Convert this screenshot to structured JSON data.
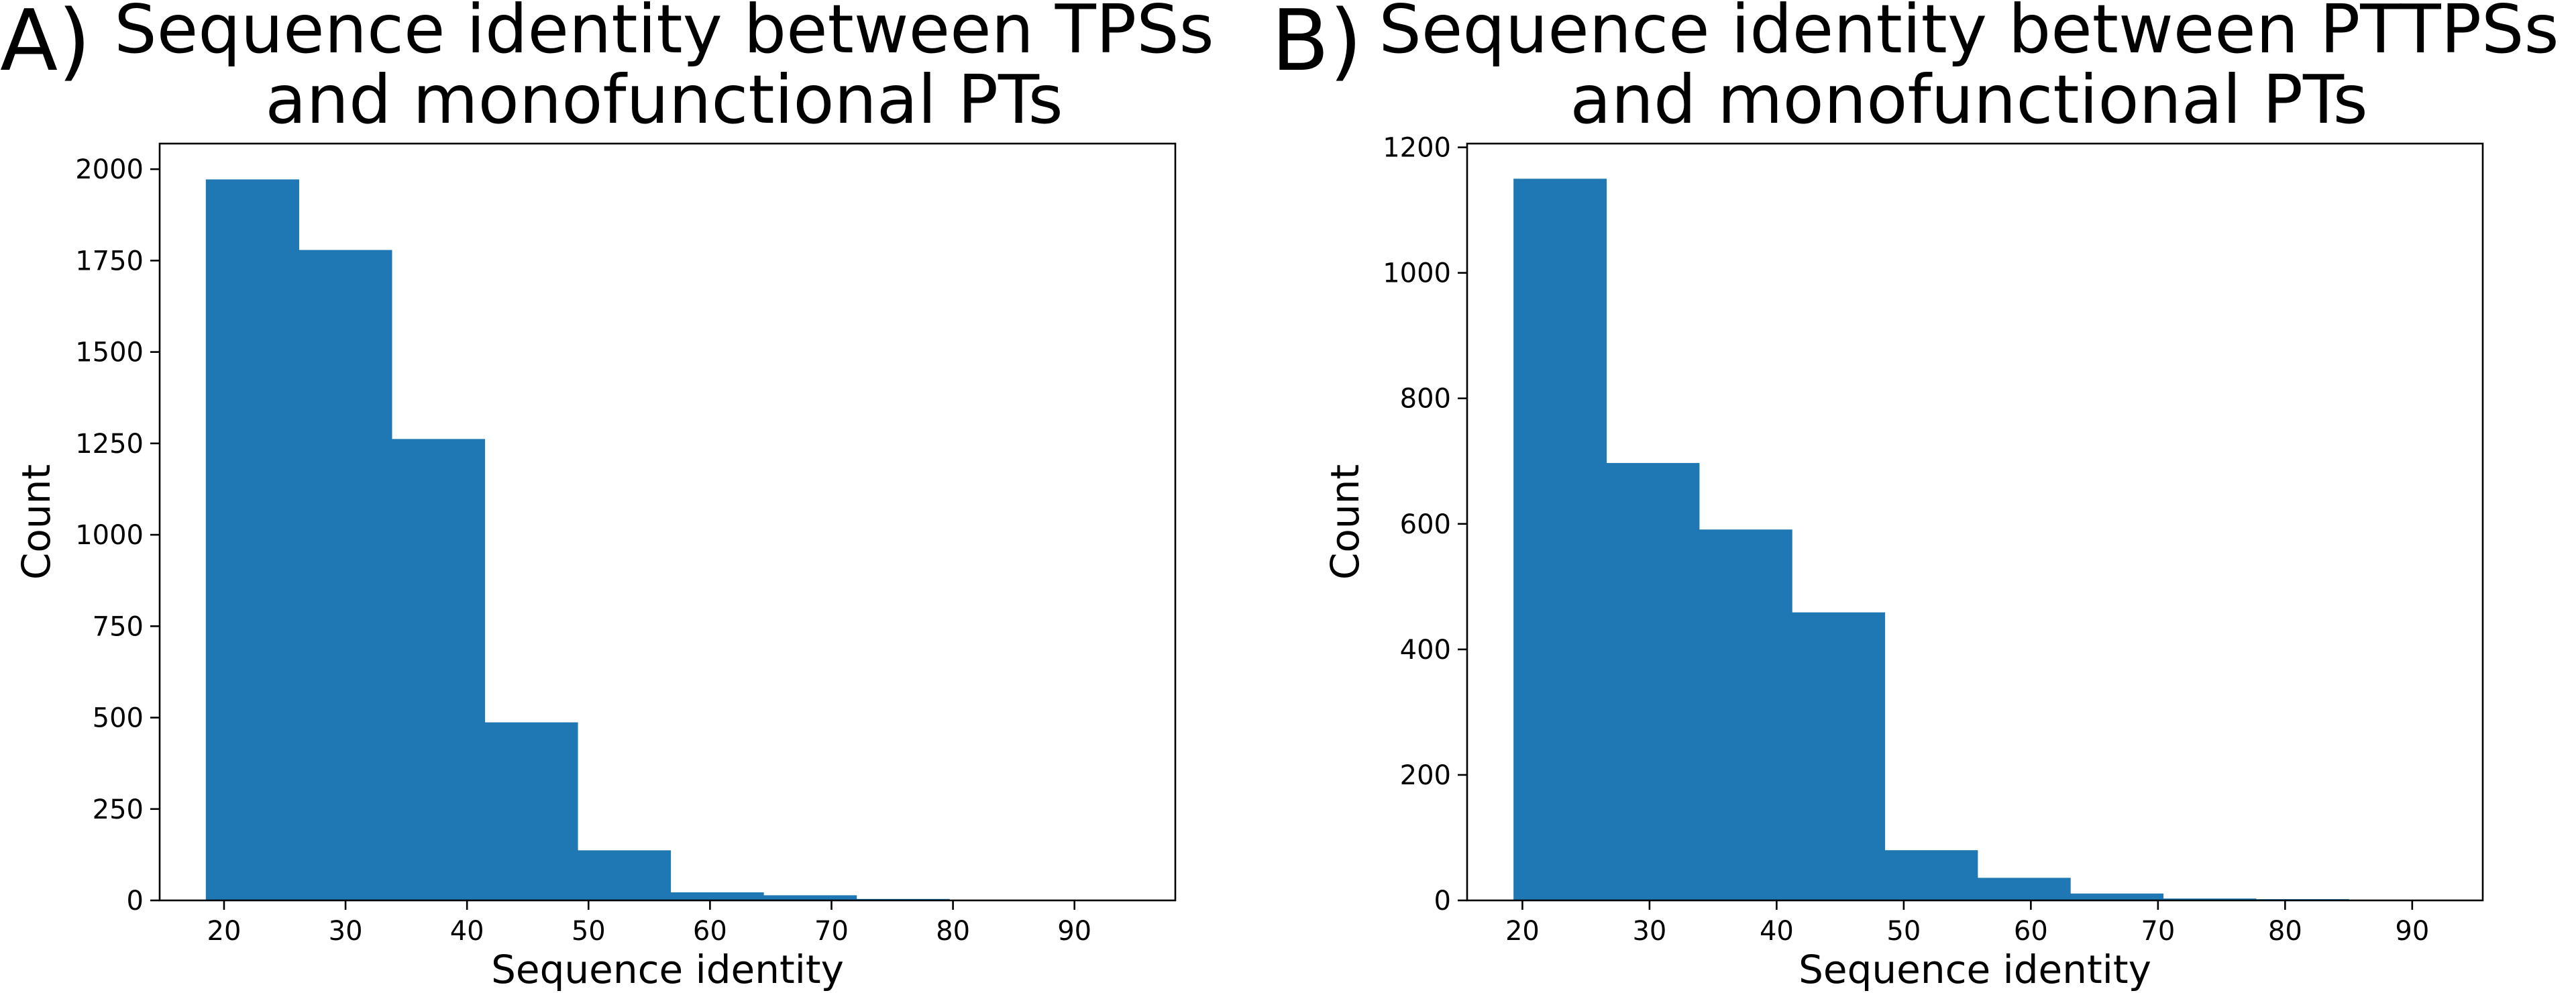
{
  "chart_data": [
    {
      "type": "bar",
      "panel_label": "A)",
      "title_lines": [
        "Sequence identity between TPSs",
        "and monofunctional PTs"
      ],
      "xlabel": "Sequence identity",
      "ylabel": "Count",
      "xlim": [
        14.7,
        98.3
      ],
      "ylim": [
        0,
        2070
      ],
      "xticks": [
        20,
        30,
        40,
        50,
        60,
        70,
        80,
        90
      ],
      "yticks": [
        0,
        250,
        500,
        750,
        1000,
        1250,
        1500,
        1750,
        2000
      ],
      "bin_edges": [
        18.5,
        26.15,
        33.8,
        41.45,
        49.1,
        56.75,
        64.4,
        72.05,
        79.7,
        87.35,
        95.0
      ],
      "values": [
        1972,
        1779,
        1262,
        487,
        137,
        22,
        14,
        4,
        1,
        1
      ],
      "color": "#1f77b4",
      "grid": false
    },
    {
      "type": "bar",
      "panel_label": "B)",
      "title_lines": [
        "Sequence identity between PTTPSs",
        "and monofunctional PTs"
      ],
      "xlabel": "Sequence identity",
      "ylabel": "Count",
      "xlim": [
        15.65,
        95.55
      ],
      "ylim": [
        0,
        1206
      ],
      "xticks": [
        20,
        30,
        40,
        50,
        60,
        70,
        80,
        90
      ],
      "yticks": [
        0,
        200,
        400,
        600,
        800,
        1000,
        1200
      ],
      "bin_edges": [
        19.3,
        26.6,
        33.9,
        41.2,
        48.5,
        55.8,
        63.1,
        70.4,
        77.7,
        85.0,
        92.3
      ],
      "values": [
        1150,
        697,
        591,
        459,
        80,
        36,
        11,
        3,
        2,
        1
      ],
      "color": "#1f77b4",
      "grid": false
    }
  ]
}
